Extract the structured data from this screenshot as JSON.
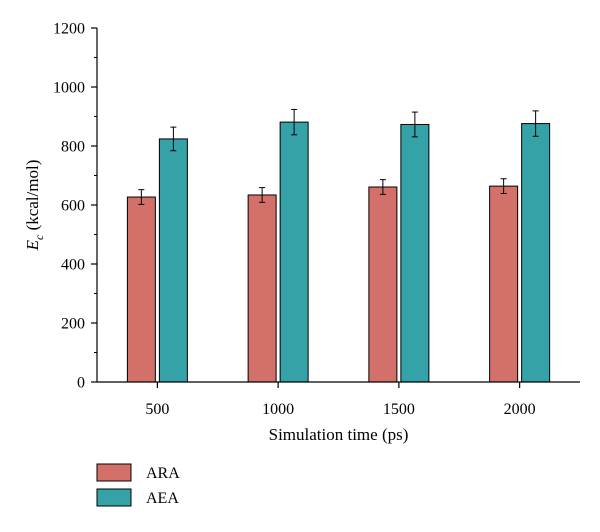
{
  "chart_data": {
    "type": "bar",
    "categories": [
      "500",
      "1000",
      "1500",
      "2000"
    ],
    "series": [
      {
        "name": "ARA",
        "values": [
          627,
          634,
          661,
          664
        ],
        "errors": [
          25,
          25,
          25,
          25
        ],
        "color": "#d4706a"
      },
      {
        "name": "AEA",
        "values": [
          824,
          881,
          873,
          876
        ],
        "errors": [
          40,
          43,
          42,
          43
        ],
        "color": "#35a2a8"
      }
    ],
    "xlabel": "Simulation time (ps)",
    "ylabel_main": "E",
    "ylabel_sub": "c",
    "ylabel_unit": " (kcal/mol)",
    "ylim": [
      0,
      1200
    ],
    "yticks": [
      "0",
      "200",
      "400",
      "600",
      "800",
      "1000",
      "1200"
    ],
    "legend_position": "bottom-left",
    "grid": false
  }
}
